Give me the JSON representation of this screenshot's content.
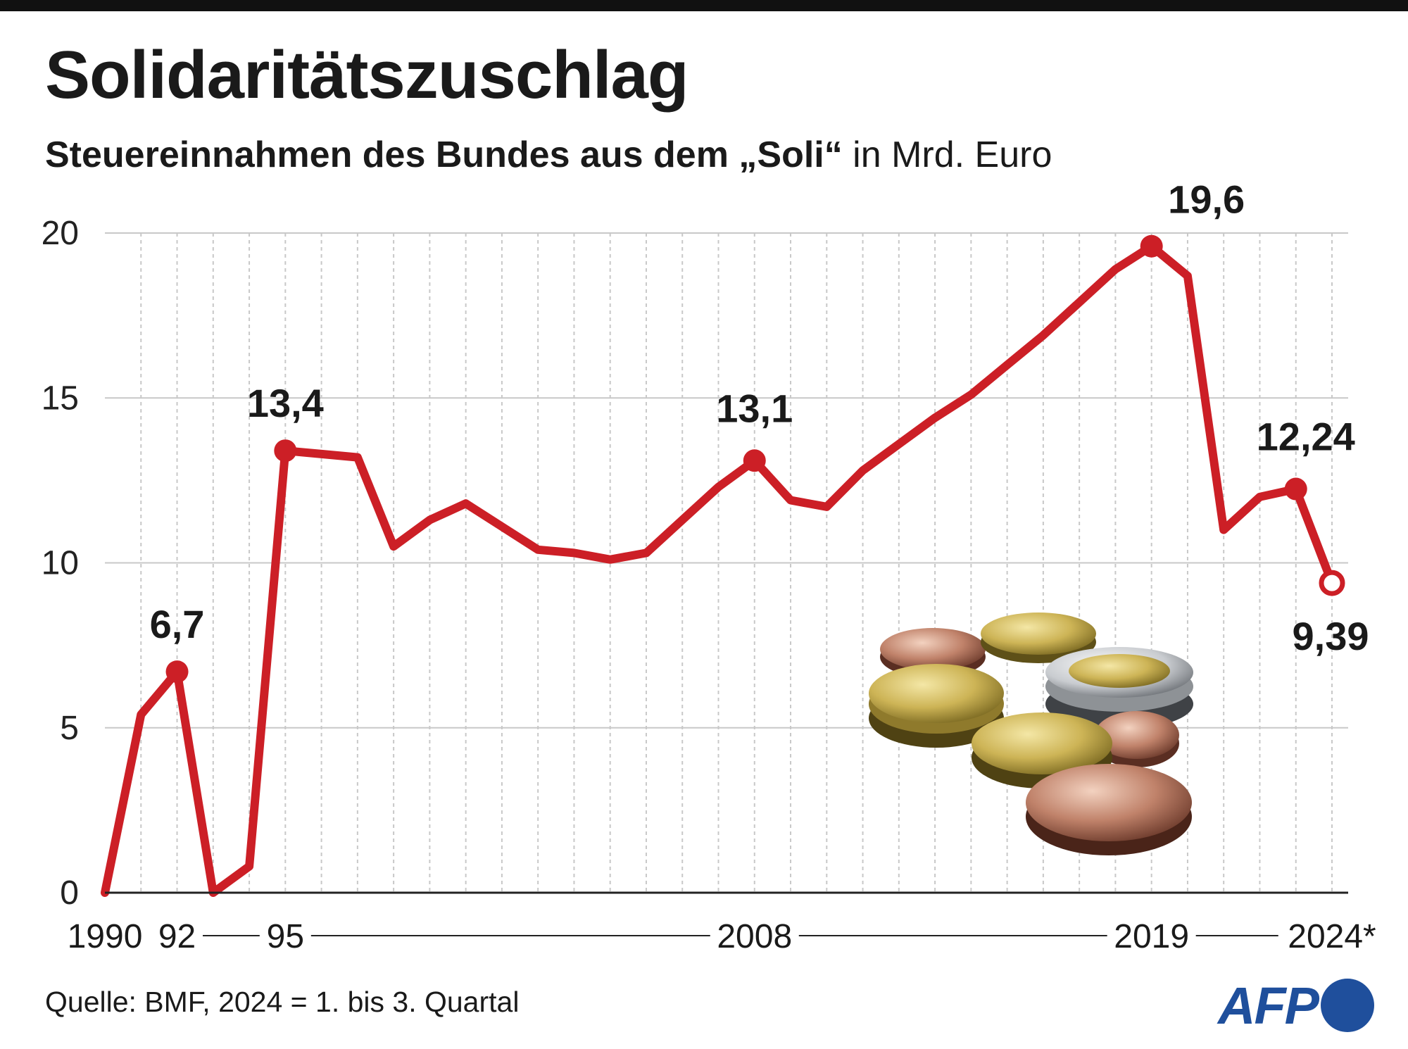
{
  "header": {
    "title": "Solidaritätszuschlag",
    "subtitle_bold": "Steuereinnahmen des Bundes aus dem „Soli“",
    "subtitle_rest": " in Mrd. Euro"
  },
  "footer": {
    "source": "Quelle: BMF, 2024 = 1. bis 3. Quartal",
    "logo": "AFP"
  },
  "colors": {
    "line": "#cc1f26",
    "grid": "#c8c8c8",
    "axis": "#222222",
    "logo": "#1f4f9c"
  },
  "illustration": "euro-coins-image",
  "chart_data": {
    "type": "line",
    "title": "Solidaritätszuschlag",
    "subtitle": "Steuereinnahmen des Bundes aus dem „Soli“ in Mrd. Euro",
    "xlabel": "",
    "ylabel": "",
    "ylim": [
      0,
      20
    ],
    "yticks": [
      0,
      5,
      10,
      15,
      20
    ],
    "grid": true,
    "x_tick_labels": [
      {
        "year": 1990,
        "label": "1990"
      },
      {
        "year": 1992,
        "label": "92"
      },
      {
        "year": 1995,
        "label": "95"
      },
      {
        "year": 2008,
        "label": "2008"
      },
      {
        "year": 2019,
        "label": "2019"
      },
      {
        "year": 2024,
        "label": "2024*"
      }
    ],
    "series": [
      {
        "x": [
          1990,
          1991,
          1992,
          1993,
          1994,
          1995,
          1996,
          1997,
          1998,
          1999,
          2000,
          2001,
          2002,
          2003,
          2004,
          2005,
          2006,
          2007,
          2008,
          2009,
          2010,
          2011,
          2012,
          2013,
          2014,
          2015,
          2016,
          2017,
          2018,
          2019,
          2020,
          2021,
          2022,
          2023,
          2024
        ],
        "values": [
          0,
          5.4,
          6.7,
          0,
          0.8,
          13.4,
          13.3,
          13.2,
          10.5,
          11.3,
          11.8,
          11.1,
          10.4,
          10.3,
          10.1,
          10.3,
          11.3,
          12.3,
          13.1,
          11.9,
          11.7,
          12.8,
          13.6,
          14.4,
          15.1,
          16.0,
          16.9,
          17.9,
          18.9,
          19.6,
          18.7,
          11.0,
          12.0,
          12.24,
          9.39
        ]
      }
    ],
    "annotations": [
      {
        "year": 1992,
        "value": 6.7,
        "label": "6,7"
      },
      {
        "year": 1995,
        "value": 13.4,
        "label": "13,4"
      },
      {
        "year": 2008,
        "value": 13.1,
        "label": "13,1"
      },
      {
        "year": 2019,
        "value": 19.6,
        "label": "19,6"
      },
      {
        "year": 2023,
        "value": 12.24,
        "label": "12,24"
      },
      {
        "year": 2024,
        "value": 9.39,
        "label": "9,39"
      }
    ]
  }
}
